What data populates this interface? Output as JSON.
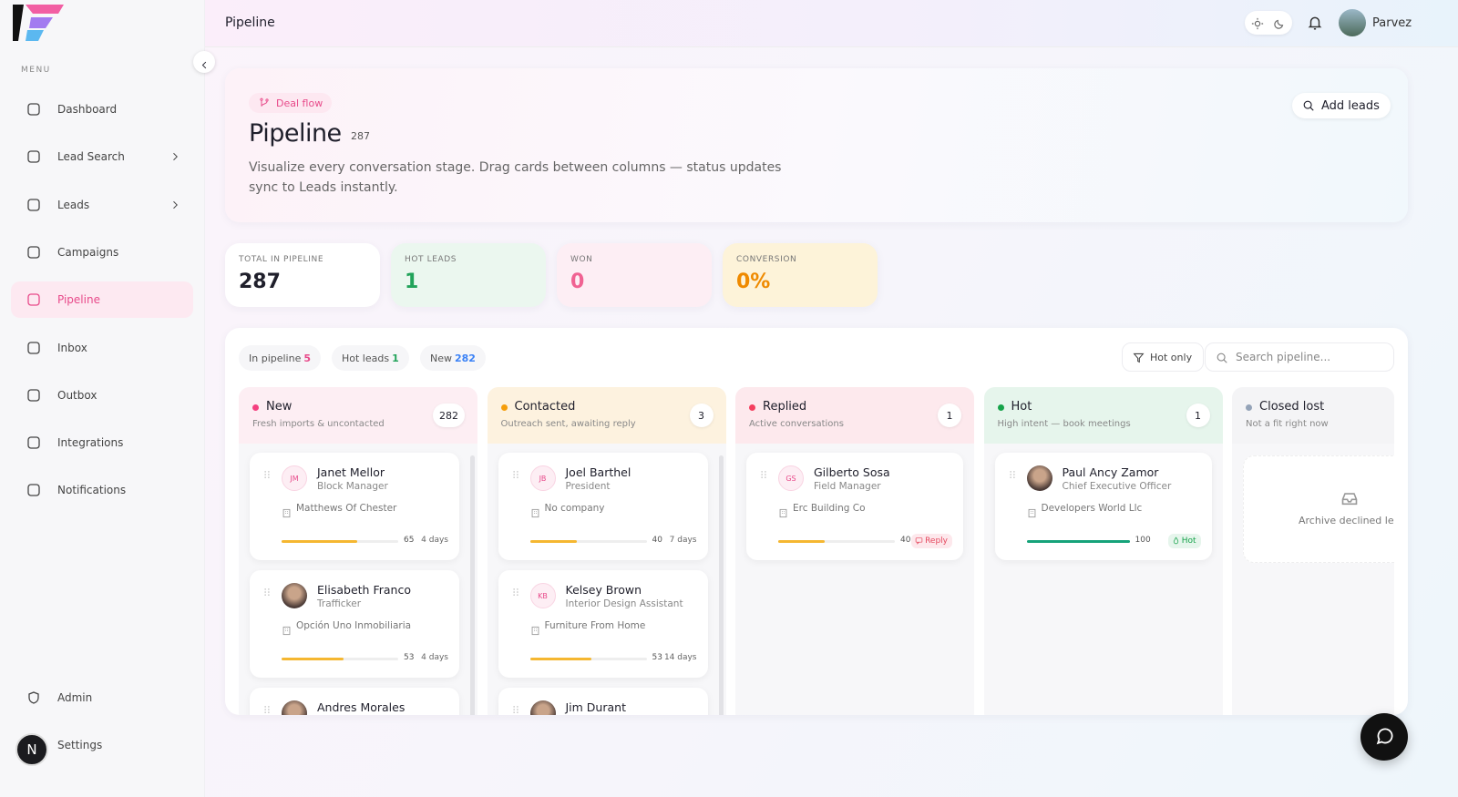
{
  "sidebar": {
    "menu_label": "MENU",
    "items": [
      "Dashboard",
      "Lead Search",
      "Leads",
      "Campaigns",
      "Pipeline",
      "Inbox",
      "Outbox",
      "Integrations",
      "Notifications"
    ],
    "active": "Pipeline",
    "bottom_items": [
      "Admin",
      "Settings"
    ],
    "avatar": "N"
  },
  "topbar": {
    "title": "Pipeline",
    "user": "Parvez"
  },
  "header": {
    "badge": "Deal flow",
    "title": "Pipeline",
    "count": "287",
    "description": "Visualize every conversation stage. Drag cards between columns — status updates sync to Leads instantly.",
    "button": "Add leads"
  },
  "stats": [
    {
      "label": "TOTAL IN PIPELINE",
      "value": "287"
    },
    {
      "label": "HOT LEADS",
      "value": "1"
    },
    {
      "label": "WON",
      "value": "0"
    },
    {
      "label": "CONVERSION",
      "value": "0%"
    }
  ],
  "filters": {
    "tabs": [
      {
        "label": "In pipeline",
        "count": "5"
      },
      {
        "label": "Hot leads",
        "count": "1"
      },
      {
        "label": "New",
        "count": "282"
      }
    ],
    "hot_only": "Hot only",
    "search_placeholder": "Search pipeline..."
  },
  "columns": [
    {
      "title": "New",
      "subtitle": "Fresh imports & uncontacted",
      "count": "282",
      "cards": [
        {
          "initials": "JM",
          "name": "Janet Mellor",
          "role": "Block Manager",
          "company": "Matthews Of Chester",
          "score": 65,
          "age": "4 days"
        },
        {
          "name": "Elisabeth Franco",
          "role": "Trafficker",
          "company": "Opción Uno Inmobiliaria",
          "score": 53,
          "age": "4 days"
        },
        {
          "name": "Andres Morales"
        }
      ]
    },
    {
      "title": "Contacted",
      "subtitle": "Outreach sent, awaiting reply",
      "count": "3",
      "cards": [
        {
          "initials": "JB",
          "name": "Joel Barthel",
          "role": "President",
          "company": "No company",
          "score": 40,
          "age": "7 days"
        },
        {
          "initials": "KB",
          "name": "Kelsey Brown",
          "role": "Interior Design Assistant",
          "company": "Furniture From Home",
          "score": 53,
          "age": "14 days"
        },
        {
          "name": "Jim Durant"
        }
      ]
    },
    {
      "title": "Replied",
      "subtitle": "Active conversations",
      "count": "1",
      "cards": [
        {
          "initials": "GS",
          "name": "Gilberto Sosa",
          "role": "Field Manager",
          "company": "Erc Building Co",
          "score": 40,
          "tag": "Reply"
        }
      ]
    },
    {
      "title": "Hot",
      "subtitle": "High intent — book meetings",
      "count": "1",
      "cards": [
        {
          "name": "Paul Ancy Zamor",
          "role": "Chief Executive Officer",
          "company": "Developers World Llc",
          "score": 100,
          "tag": "Hot"
        }
      ]
    },
    {
      "title": "Closed lost",
      "subtitle": "Not a fit right now",
      "empty": "Archive declined leads",
      "cards": []
    }
  ]
}
